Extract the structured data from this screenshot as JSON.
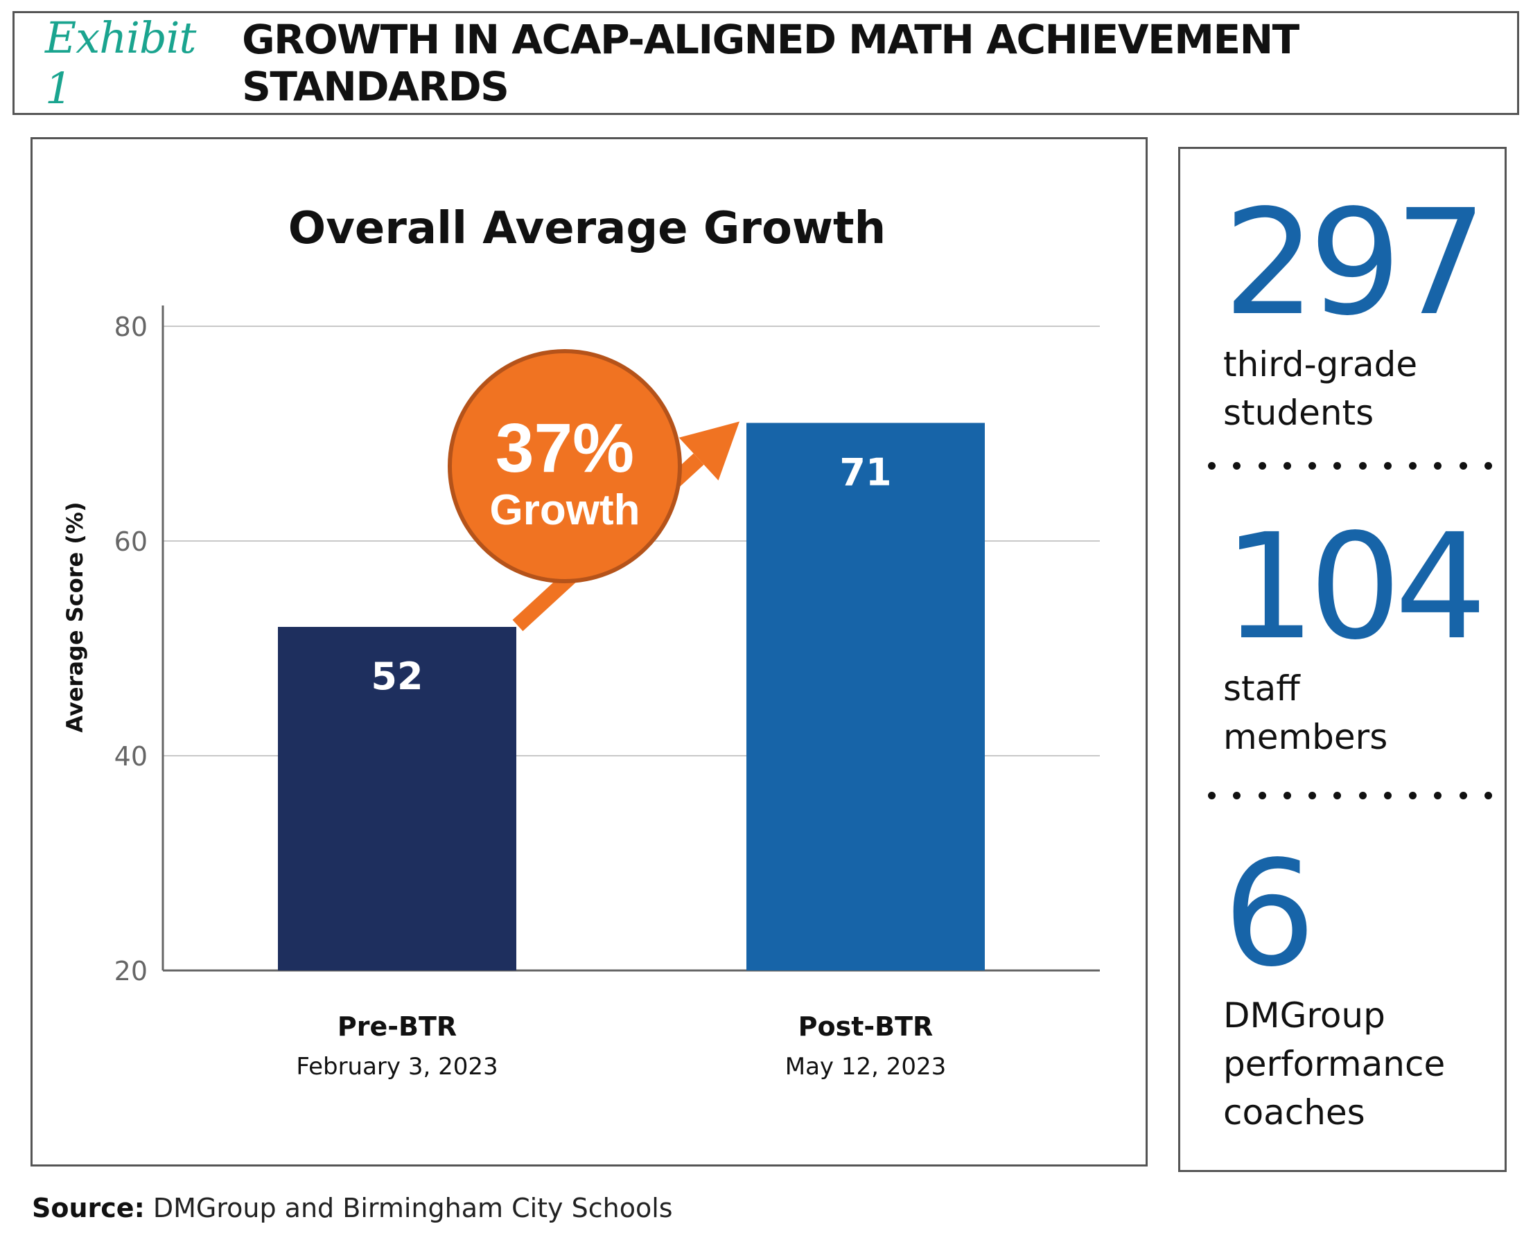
{
  "header": {
    "exhibit_label": "Exhibit 1",
    "title": "GROWTH IN ACAP-ALIGNED MATH ACHIEVEMENT STANDARDS"
  },
  "chart_data": {
    "type": "bar",
    "title": "Overall Average Growth",
    "ylabel": "Average Score (%)",
    "xlabel": "",
    "ylim": [
      20,
      80
    ],
    "yticks": [
      20,
      40,
      60,
      80
    ],
    "grid": true,
    "categories": [
      "Pre-BTR",
      "Post-BTR"
    ],
    "category_dates": [
      "February 3, 2023",
      "May 12, 2023"
    ],
    "values": [
      52,
      71
    ],
    "data_labels": [
      "52",
      "71"
    ],
    "bar_colors": [
      "#1e2f5e",
      "#1764a8"
    ],
    "annotation": {
      "value": "37%",
      "text": "Growth",
      "color": "#f07322"
    }
  },
  "stats": [
    {
      "number": "297",
      "label": "third-grade\nstudents"
    },
    {
      "number": "104",
      "label": "staff\nmembers"
    },
    {
      "number": "6",
      "label": "DMGroup\nperformance\ncoaches"
    }
  ],
  "source": {
    "label": "Source:",
    "text": "DMGroup and Birmingham City Schools"
  }
}
